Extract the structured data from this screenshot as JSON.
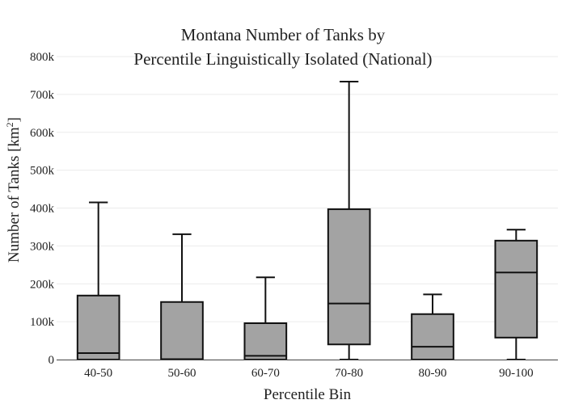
{
  "chart_data": {
    "type": "box",
    "title_lines": [
      "Montana Number of Tanks by",
      "Percentile Linguistically Isolated (National)"
    ],
    "xlabel": "Percentile Bin",
    "ylabel_prefix": "Number of Tanks  [km",
    "ylabel_sup": "2",
    "ylabel_suffix": "]",
    "ylim": [
      0,
      800000
    ],
    "y_ticks": [
      0,
      100000,
      200000,
      300000,
      400000,
      500000,
      600000,
      700000,
      800000
    ],
    "y_tick_labels": [
      "0",
      "100k",
      "200k",
      "300k",
      "400k",
      "500k",
      "600k",
      "700k",
      "800k"
    ],
    "grid": true,
    "categories": [
      "40-50",
      "50-60",
      "60-70",
      "70-80",
      "80-90",
      "90-100"
    ],
    "box_color": "#a3a3a3",
    "line_color": "#111111",
    "boxes": [
      {
        "category": "40-50",
        "min": 0,
        "q1": 0,
        "median": 17000,
        "q3": 169000,
        "max": 415000
      },
      {
        "category": "50-60",
        "min": 0,
        "q1": 0,
        "median": 1000,
        "q3": 152000,
        "max": 331000
      },
      {
        "category": "60-70",
        "min": 0,
        "q1": 0,
        "median": 10000,
        "q3": 96000,
        "max": 217000
      },
      {
        "category": "70-80",
        "min": 0,
        "q1": 40000,
        "median": 148000,
        "q3": 397000,
        "max": 734000
      },
      {
        "category": "80-90",
        "min": 0,
        "q1": 0,
        "median": 34000,
        "q3": 120000,
        "max": 172000
      },
      {
        "category": "90-100",
        "min": 0,
        "q1": 58000,
        "median": 230000,
        "q3": 314000,
        "max": 343000
      }
    ]
  }
}
